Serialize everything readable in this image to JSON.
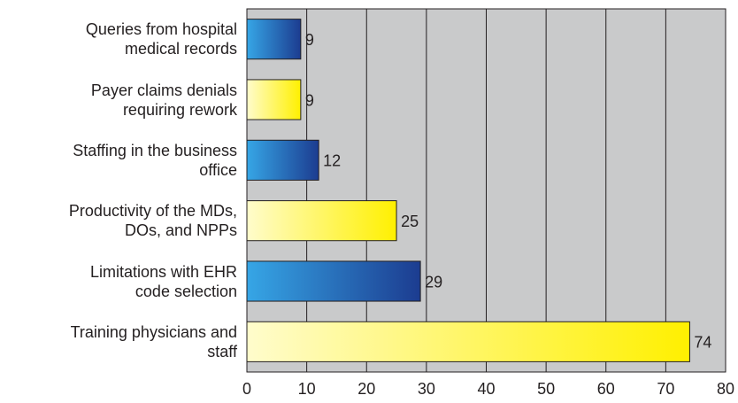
{
  "chart_data": {
    "type": "barh",
    "categories": [
      "Queries from hospital\nmedical records",
      "Payer claims denials\nrequiring rework",
      "Staffing in the business\noffice",
      "Productivity of the MDs,\nDOs, and NPPs",
      "Limitations with EHR\ncode selection",
      "Training physicians and\nstaff"
    ],
    "values": [
      9,
      9,
      12,
      25,
      29,
      74
    ],
    "colors": [
      "#1c3c90",
      "#fff000",
      "#1c3c90",
      "#fff000",
      "#1c3c90",
      "#fff000"
    ],
    "xlim": [
      0,
      80
    ],
    "xticks": [
      0,
      10,
      20,
      30,
      40,
      50,
      60,
      70,
      80
    ],
    "grid": true
  }
}
